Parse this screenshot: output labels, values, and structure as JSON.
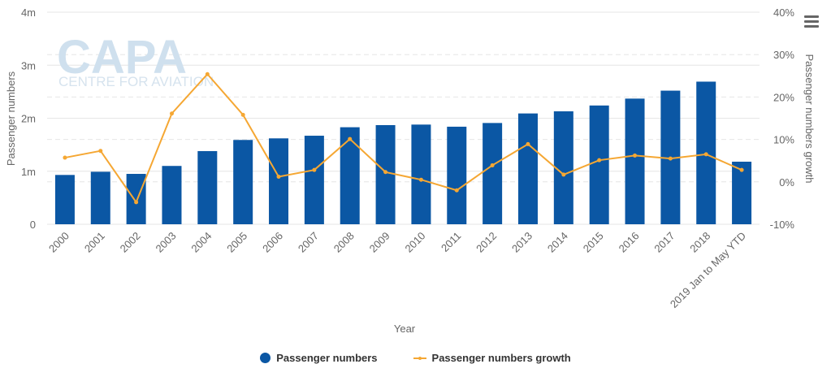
{
  "chart_data": {
    "type": "bar+line",
    "xlabel": "Year",
    "ylabel_left": "Passenger numbers",
    "ylabel_right": "Passenger numbers growth",
    "categories": [
      "2000",
      "2001",
      "2002",
      "2003",
      "2004",
      "2005",
      "2006",
      "2007",
      "2008",
      "2009",
      "2010",
      "2011",
      "2012",
      "2013",
      "2014",
      "2015",
      "2016",
      "2017",
      "2018",
      "2019 Jan to May YTD"
    ],
    "series": [
      {
        "name": "Passenger numbers",
        "type": "bar",
        "axis": "left",
        "color": "#0b57a4",
        "values": [
          0.93,
          0.99,
          0.95,
          1.1,
          1.38,
          1.59,
          1.62,
          1.67,
          1.83,
          1.87,
          1.88,
          1.84,
          1.91,
          2.09,
          2.13,
          2.24,
          2.37,
          2.52,
          2.69,
          1.18
        ]
      },
      {
        "name": "Passenger numbers growth",
        "type": "line",
        "axis": "right",
        "color": "#f5a733",
        "values": [
          5.7,
          7.3,
          -4.8,
          16.1,
          25.4,
          15.8,
          1.2,
          2.8,
          10.1,
          2.3,
          0.5,
          -2.0,
          3.9,
          8.9,
          1.7,
          5.1,
          6.2,
          5.5,
          6.5,
          2.8
        ]
      }
    ],
    "ylim_left": [
      0,
      4
    ],
    "yticks_left": [
      "0",
      "1m",
      "2m",
      "3m",
      "4m"
    ],
    "ylim_right": [
      -10,
      40
    ],
    "yticks_right": [
      "-10%",
      "0%",
      "10%",
      "20%",
      "30%",
      "40%"
    ],
    "grid": true,
    "legend_position": "bottom-center"
  },
  "watermark": {
    "brand": "CAPA",
    "tagline": "CENTRE FOR AVIATION"
  },
  "menu": {
    "icon": "hamburger-menu-icon"
  }
}
